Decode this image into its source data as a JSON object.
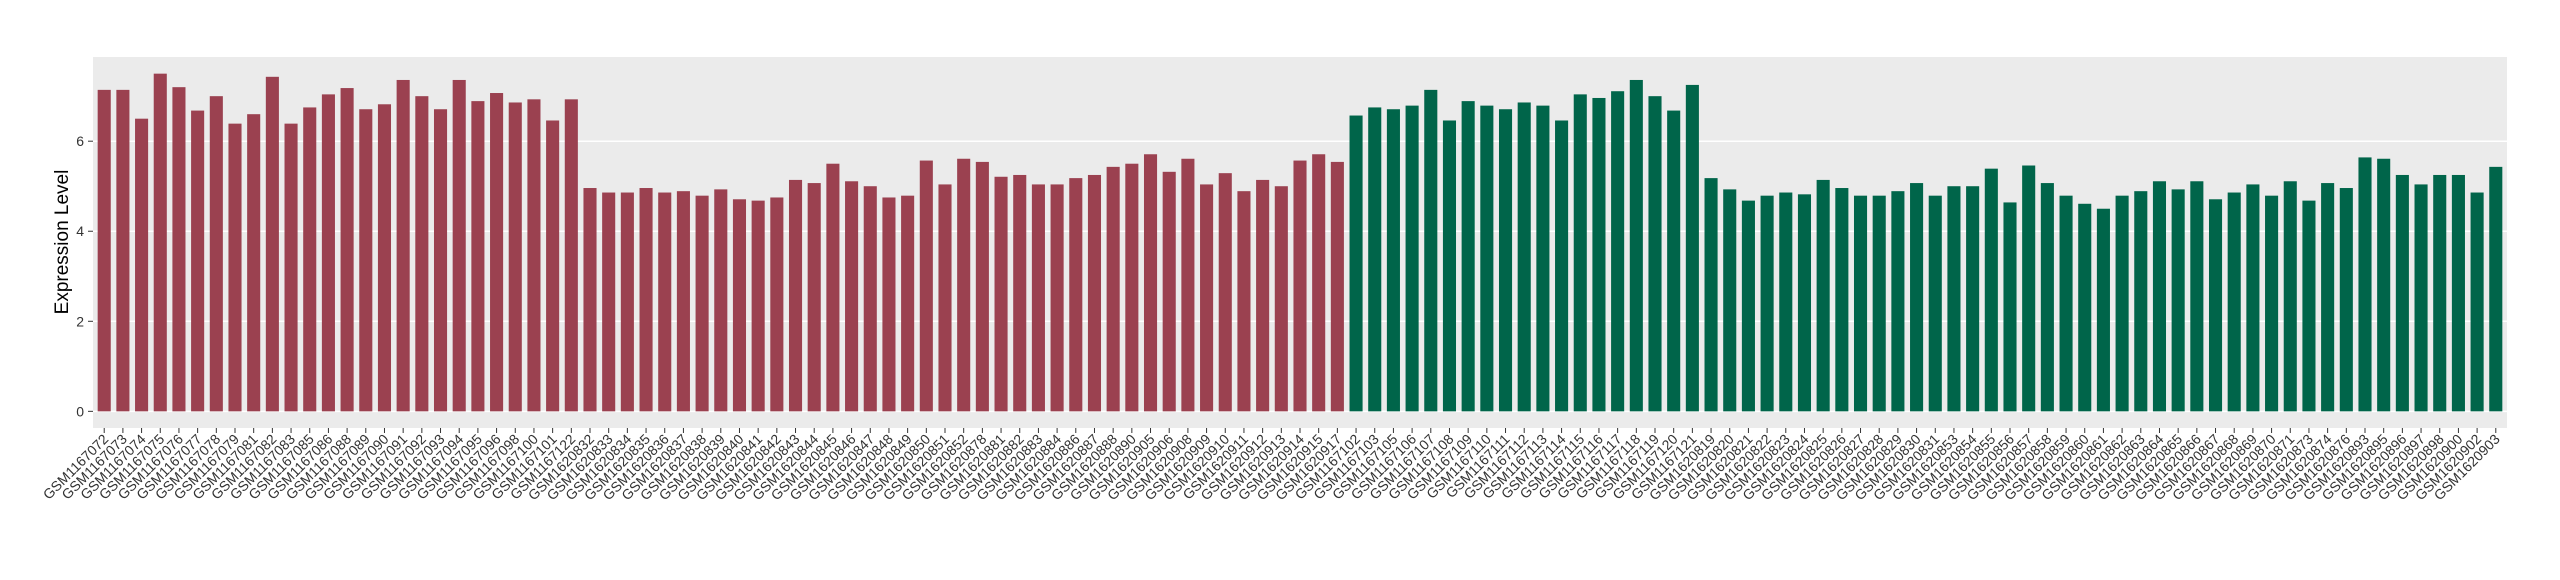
{
  "chart_data": {
    "type": "bar",
    "y_label": "Expression Level",
    "categories": [
      "GSM1167072",
      "GSM1167073",
      "GSM1167074",
      "GSM1167075",
      "GSM1167076",
      "GSM1167077",
      "GSM1167078",
      "GSM1167079",
      "GSM1167081",
      "GSM1167082",
      "GSM1167083",
      "GSM1167085",
      "GSM1167086",
      "GSM1167088",
      "GSM1167089",
      "GSM1167090",
      "GSM1167091",
      "GSM1167092",
      "GSM1167093",
      "GSM1167094",
      "GSM1167095",
      "GSM1167096",
      "GSM1167098",
      "GSM1167100",
      "GSM1167101",
      "GSM1167122",
      "GSM1620832",
      "GSM1620833",
      "GSM1620834",
      "GSM1620835",
      "GSM1620836",
      "GSM1620837",
      "GSM1620838",
      "GSM1620839",
      "GSM1620840",
      "GSM1620841",
      "GSM1620842",
      "GSM1620843",
      "GSM1620844",
      "GSM1620845",
      "GSM1620846",
      "GSM1620847",
      "GSM1620848",
      "GSM1620849",
      "GSM1620850",
      "GSM1620851",
      "GSM1620852",
      "GSM1620878",
      "GSM1620881",
      "GSM1620882",
      "GSM1620883",
      "GSM1620884",
      "GSM1620886",
      "GSM1620887",
      "GSM1620888",
      "GSM1620890",
      "GSM1620905",
      "GSM1620906",
      "GSM1620908",
      "GSM1620909",
      "GSM1620910",
      "GSM1620911",
      "GSM1620912",
      "GSM1620913",
      "GSM1620914",
      "GSM1620915",
      "GSM1620917",
      "GSM1167102",
      "GSM1167103",
      "GSM1167105",
      "GSM1167106",
      "GSM1167107",
      "GSM1167108",
      "GSM1167109",
      "GSM1167110",
      "GSM1167111",
      "GSM1167112",
      "GSM1167113",
      "GSM1167114",
      "GSM1167115",
      "GSM1167116",
      "GSM1167117",
      "GSM1167118",
      "GSM1167119",
      "GSM1167120",
      "GSM1167121",
      "GSM1620819",
      "GSM1620820",
      "GSM1620821",
      "GSM1620822",
      "GSM1620823",
      "GSM1620824",
      "GSM1620825",
      "GSM1620826",
      "GSM1620827",
      "GSM1620828",
      "GSM1620829",
      "GSM1620830",
      "GSM1620831",
      "GSM1620853",
      "GSM1620854",
      "GSM1620855",
      "GSM1620856",
      "GSM1620857",
      "GSM1620858",
      "GSM1620859",
      "GSM1620860",
      "GSM1620861",
      "GSM1620862",
      "GSM1620863",
      "GSM1620864",
      "GSM1620865",
      "GSM1620866",
      "GSM1620867",
      "GSM1620868",
      "GSM1620869",
      "GSM1620870",
      "GSM1620871",
      "GSM1620873",
      "GSM1620874",
      "GSM1620876",
      "GSM1620893",
      "GSM1620895",
      "GSM1620896",
      "GSM1620897",
      "GSM1620898",
      "GSM1620900",
      "GSM1620902",
      "GSM1620903"
    ],
    "values": [
      7.14,
      7.14,
      6.5,
      7.5,
      7.2,
      6.68,
      7.0,
      6.39,
      6.6,
      7.43,
      6.39,
      6.75,
      7.04,
      7.18,
      6.71,
      6.82,
      7.36,
      7.0,
      6.71,
      7.36,
      6.89,
      7.07,
      6.86,
      6.93,
      6.46,
      6.93,
      4.96,
      4.86,
      4.86,
      4.96,
      4.86,
      4.89,
      4.79,
      4.93,
      4.71,
      4.68,
      4.75,
      5.14,
      5.07,
      5.5,
      5.11,
      5.0,
      4.75,
      4.79,
      5.57,
      5.04,
      5.61,
      5.54,
      5.21,
      5.25,
      5.04,
      5.04,
      5.18,
      5.25,
      5.43,
      5.5,
      5.71,
      5.32,
      5.61,
      5.04,
      5.29,
      4.89,
      5.14,
      5.0,
      5.57,
      5.71,
      5.54,
      6.57,
      6.75,
      6.71,
      6.79,
      7.14,
      6.46,
      6.89,
      6.79,
      6.71,
      6.86,
      6.79,
      6.46,
      7.04,
      6.96,
      7.11,
      7.36,
      7.0,
      6.68,
      7.25,
      5.18,
      4.93,
      4.68,
      4.79,
      4.86,
      4.82,
      5.14,
      4.96,
      4.79,
      4.79,
      4.89,
      5.07,
      4.79,
      5.0,
      5.0,
      5.39,
      4.64,
      5.46,
      5.07,
      4.79,
      4.61,
      4.5,
      4.79,
      4.89,
      5.11,
      4.93,
      5.11,
      4.71,
      4.86,
      5.04,
      4.79,
      5.11,
      4.68,
      5.07,
      4.96,
      5.64,
      5.61,
      5.25,
      5.04,
      5.25,
      5.25,
      4.86,
      5.43
    ],
    "colors": [
      "#9b4150",
      "#9b4150",
      "#9b4150",
      "#9b4150",
      "#9b4150",
      "#9b4150",
      "#9b4150",
      "#9b4150",
      "#9b4150",
      "#9b4150",
      "#9b4150",
      "#9b4150",
      "#9b4150",
      "#9b4150",
      "#9b4150",
      "#9b4150",
      "#9b4150",
      "#9b4150",
      "#9b4150",
      "#9b4150",
      "#9b4150",
      "#9b4150",
      "#9b4150",
      "#9b4150",
      "#9b4150",
      "#9b4150",
      "#9b4150",
      "#9b4150",
      "#9b4150",
      "#9b4150",
      "#9b4150",
      "#9b4150",
      "#9b4150",
      "#9b4150",
      "#9b4150",
      "#9b4150",
      "#9b4150",
      "#9b4150",
      "#9b4150",
      "#9b4150",
      "#9b4150",
      "#9b4150",
      "#9b4150",
      "#9b4150",
      "#9b4150",
      "#9b4150",
      "#9b4150",
      "#9b4150",
      "#9b4150",
      "#9b4150",
      "#9b4150",
      "#9b4150",
      "#9b4150",
      "#9b4150",
      "#9b4150",
      "#9b4150",
      "#9b4150",
      "#9b4150",
      "#9b4150",
      "#9b4150",
      "#9b4150",
      "#9b4150",
      "#9b4150",
      "#9b4150",
      "#9b4150",
      "#9b4150",
      "#9b4150",
      "#00654a",
      "#00654a",
      "#00654a",
      "#00654a",
      "#00654a",
      "#00654a",
      "#00654a",
      "#00654a",
      "#00654a",
      "#00654a",
      "#00654a",
      "#00654a",
      "#00654a",
      "#00654a",
      "#00654a",
      "#00654a",
      "#00654a",
      "#00654a",
      "#00654a",
      "#00654a",
      "#00654a",
      "#00654a",
      "#00654a",
      "#00654a",
      "#00654a",
      "#00654a",
      "#00654a",
      "#00654a",
      "#00654a",
      "#00654a",
      "#00654a",
      "#00654a",
      "#00654a",
      "#00654a",
      "#00654a",
      "#00654a",
      "#00654a",
      "#00654a",
      "#00654a",
      "#00654a",
      "#00654a",
      "#00654a",
      "#00654a",
      "#00654a",
      "#00654a",
      "#00654a",
      "#00654a",
      "#00654a",
      "#00654a",
      "#00654a",
      "#00654a",
      "#00654a",
      "#00654a",
      "#00654a",
      "#00654a",
      "#00654a",
      "#00654a",
      "#00654a",
      "#00654a",
      "#00654a",
      "#00654a",
      "#00654a"
    ],
    "ylim": [
      -0.37,
      7.87
    ],
    "yticks": [
      0,
      2,
      4,
      6
    ],
    "grid": true
  }
}
